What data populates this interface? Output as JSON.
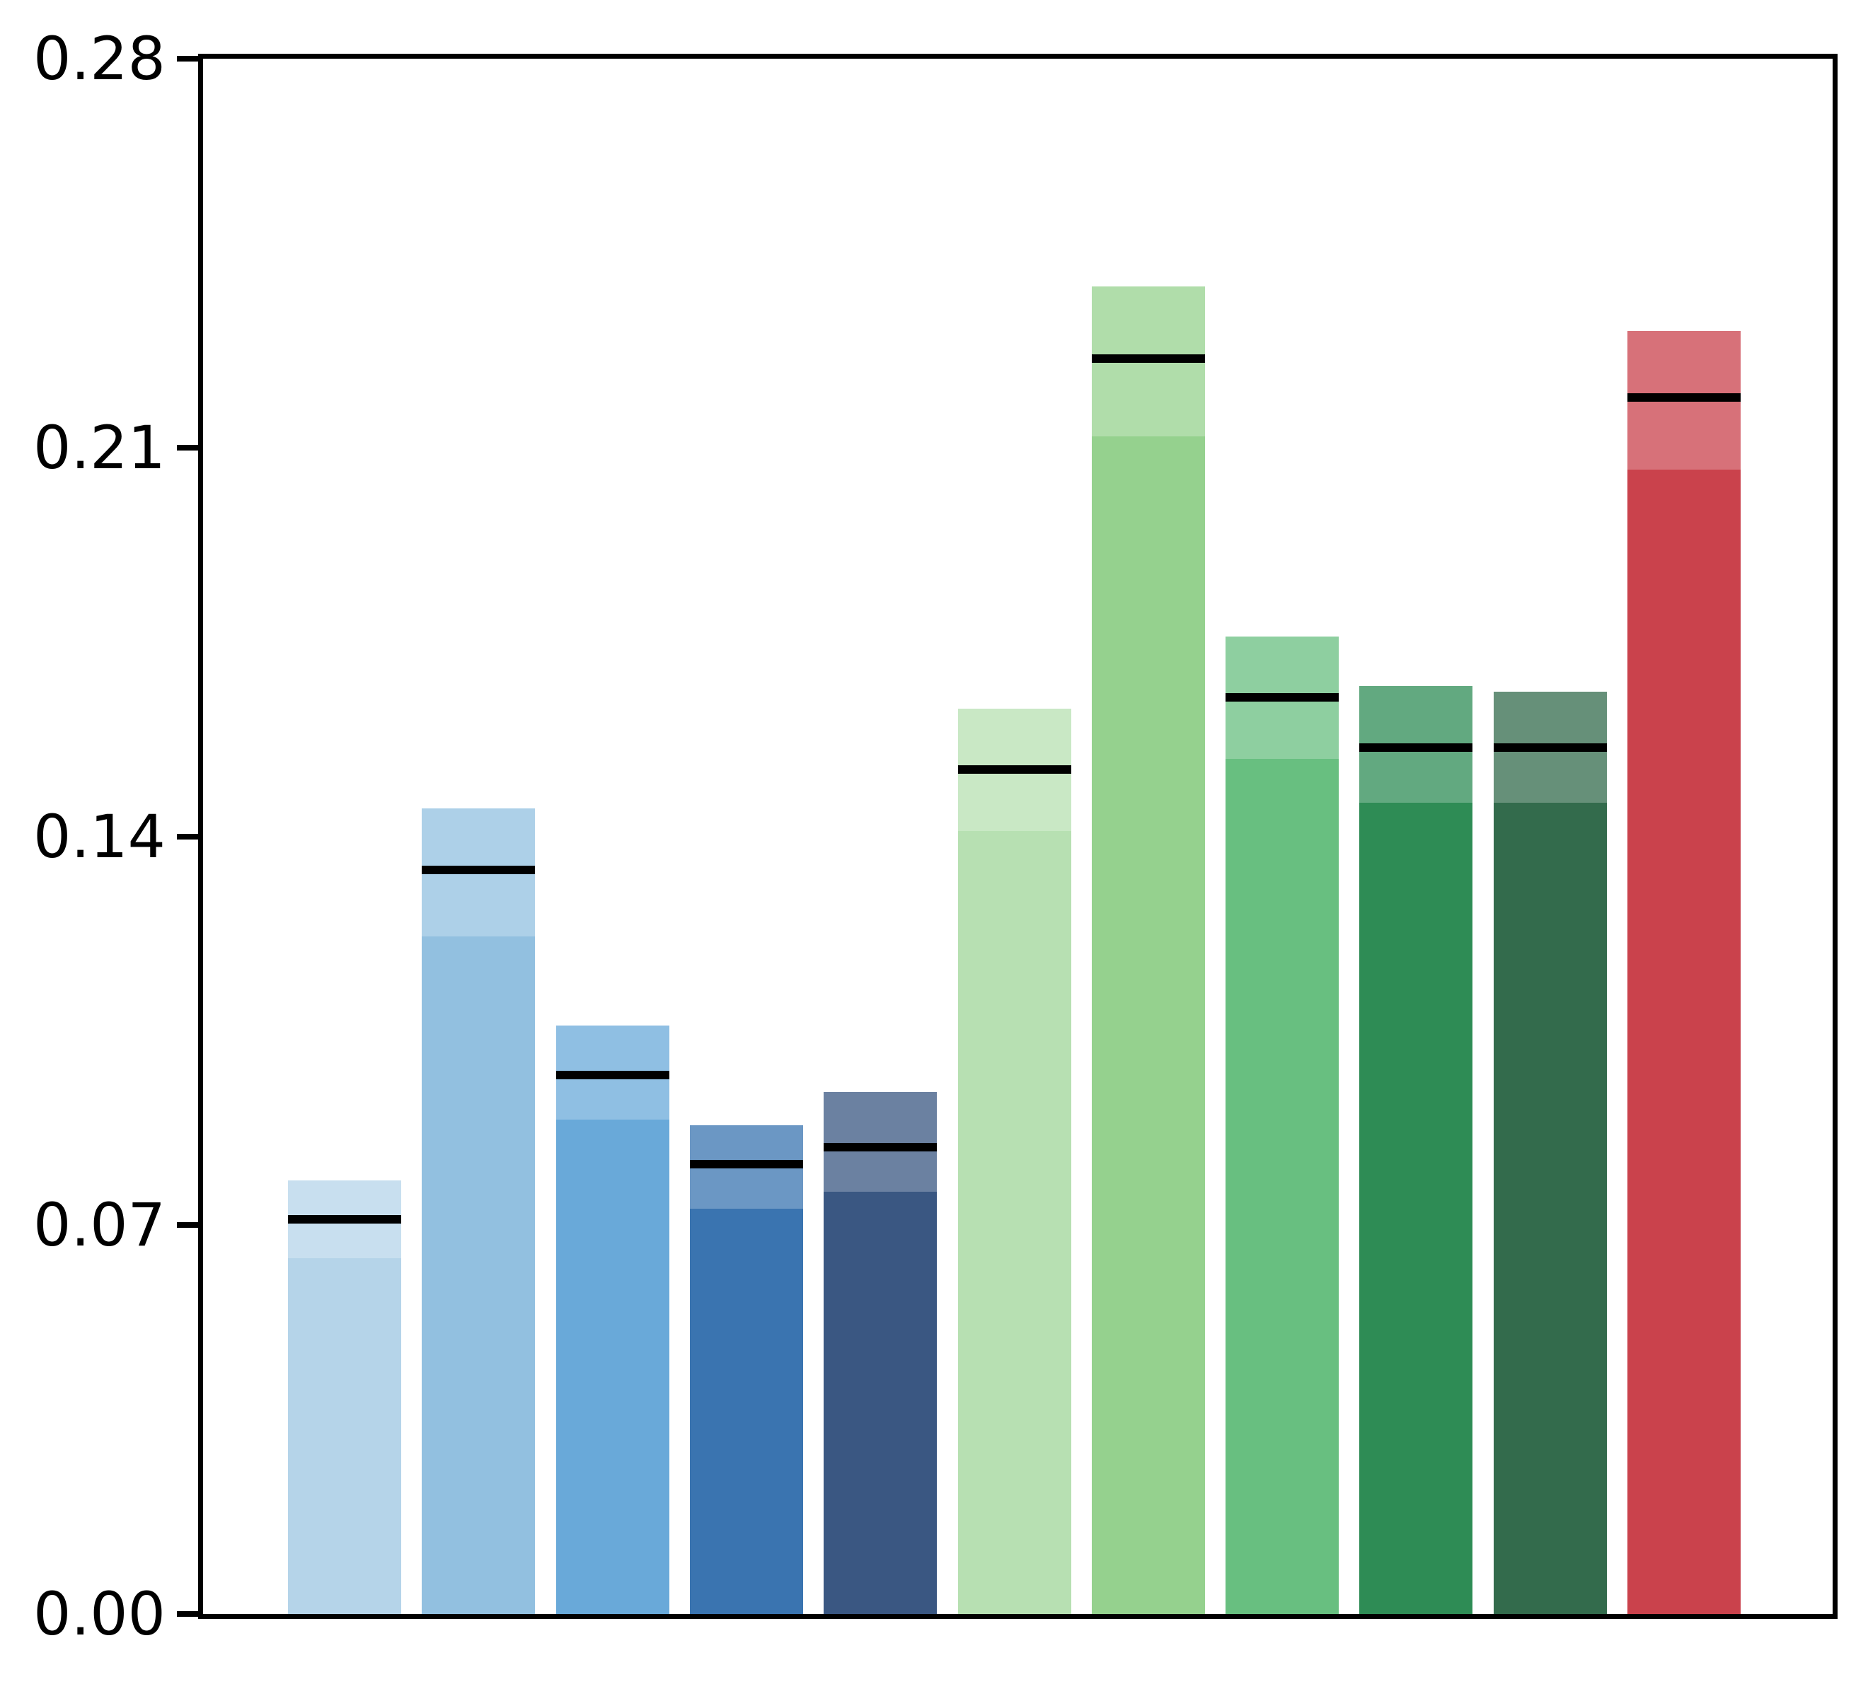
{
  "chart_data": {
    "type": "bar",
    "title": "",
    "xlabel": "",
    "ylabel": "",
    "ylim": [
      0,
      0.28
    ],
    "yticks": [
      0.0,
      0.07,
      0.14,
      0.21,
      0.28
    ],
    "ytick_labels": [
      "0.00",
      "0.07",
      "0.14",
      "0.21",
      "0.28"
    ],
    "xtick_labels": [],
    "grid": false,
    "legend": null,
    "axis_color": "#000000",
    "mean_marker_color": "#000000",
    "cap_opacity": 0.75,
    "bars": [
      {
        "group": "blue",
        "color": "#b5d4e9",
        "min": 0.064,
        "mean": 0.071,
        "max": 0.078
      },
      {
        "group": "blue",
        "color": "#92c0e0",
        "min": 0.122,
        "mean": 0.134,
        "max": 0.145
      },
      {
        "group": "blue",
        "color": "#69a9d9",
        "min": 0.089,
        "mean": 0.097,
        "max": 0.106
      },
      {
        "group": "blue",
        "color": "#3a74b0",
        "min": 0.073,
        "mean": 0.081,
        "max": 0.088
      },
      {
        "group": "blue",
        "color": "#3a5782",
        "min": 0.076,
        "mean": 0.084,
        "max": 0.094
      },
      {
        "group": "green",
        "color": "#b7e0b2",
        "min": 0.141,
        "mean": 0.152,
        "max": 0.163
      },
      {
        "group": "green",
        "color": "#95d18e",
        "min": 0.212,
        "mean": 0.226,
        "max": 0.239
      },
      {
        "group": "green",
        "color": "#68bf80",
        "min": 0.154,
        "mean": 0.165,
        "max": 0.176
      },
      {
        "group": "green",
        "color": "#2e8c55",
        "min": 0.146,
        "mean": 0.156,
        "max": 0.167
      },
      {
        "group": "green",
        "color": "#336b4c",
        "min": 0.146,
        "mean": 0.156,
        "max": 0.166
      },
      {
        "group": "red",
        "color": "#ca424c",
        "min": 0.206,
        "mean": 0.219,
        "max": 0.231
      }
    ]
  }
}
